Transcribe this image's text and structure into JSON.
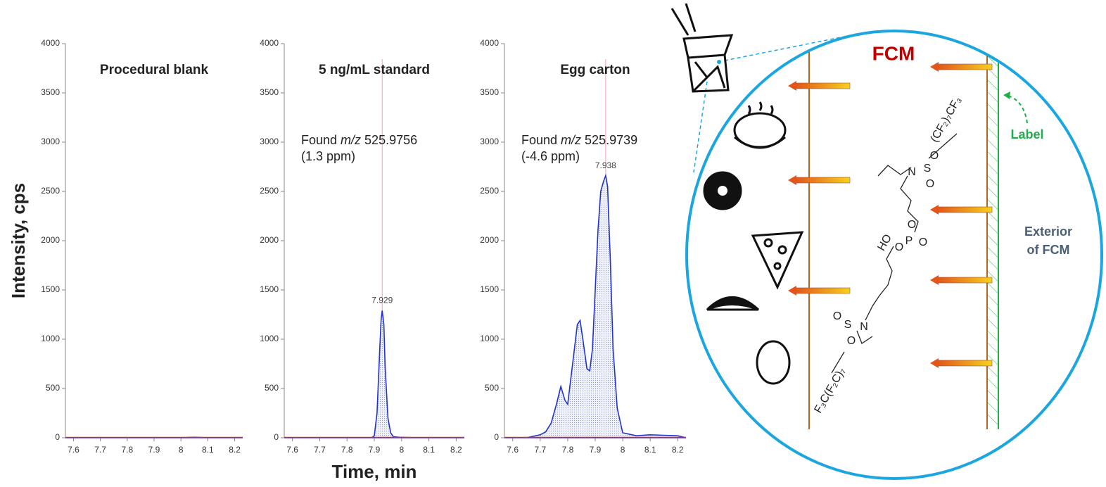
{
  "chart_data": [
    {
      "type": "line",
      "title": "Procedural blank",
      "x": [
        7.57,
        7.6,
        7.65,
        7.7,
        7.75,
        7.8,
        7.85,
        7.9,
        7.95,
        8.0,
        8.05,
        8.1,
        8.15,
        8.2,
        8.23
      ],
      "values": [
        0,
        0,
        0,
        0,
        0,
        0,
        0,
        0,
        0,
        0,
        5,
        0,
        0,
        0,
        0
      ],
      "color": "#2233cc",
      "xlim": [
        7.57,
        8.23
      ],
      "xticks": [
        7.6,
        7.7,
        7.8,
        7.9,
        8.0,
        8.1,
        8.2
      ],
      "ylim": [
        0,
        4000
      ],
      "yticks": [
        0,
        500,
        1000,
        1500,
        2000,
        2500,
        3000,
        3500,
        4000
      ]
    },
    {
      "type": "line",
      "title": "5 ng/mL standard",
      "annotation": {
        "prefix": "Found",
        "italic": "m/z",
        "value": 525.9756,
        "line2": "(1.3 ppm)"
      },
      "peak_label": 7.929,
      "x": [
        7.57,
        7.65,
        7.75,
        7.85,
        7.89,
        7.9,
        7.91,
        7.92,
        7.925,
        7.929,
        7.935,
        7.94,
        7.95,
        7.96,
        7.97,
        7.99,
        8.05,
        8.15,
        8.23
      ],
      "values": [
        0,
        0,
        0,
        0,
        0,
        20,
        250,
        900,
        1200,
        1290,
        1150,
        700,
        200,
        50,
        10,
        5,
        0,
        0,
        0
      ],
      "color": "#2233cc",
      "xlim": [
        7.57,
        8.23
      ],
      "xticks": [
        7.6,
        7.7,
        7.8,
        7.9,
        8.0,
        8.1,
        8.2
      ],
      "ylim": [
        0,
        4000
      ],
      "yticks": [
        0,
        500,
        1000,
        1500,
        2000,
        2500,
        3000,
        3500,
        4000
      ]
    },
    {
      "type": "line",
      "title": "Egg carton",
      "annotation": {
        "prefix": "Found",
        "italic": "m/z",
        "value": 525.9739,
        "line2": "(-4.6 ppm)"
      },
      "peak_label": 7.938,
      "x": [
        7.57,
        7.65,
        7.7,
        7.72,
        7.74,
        7.76,
        7.775,
        7.79,
        7.8,
        7.82,
        7.835,
        7.845,
        7.855,
        7.87,
        7.88,
        7.89,
        7.9,
        7.91,
        7.92,
        7.93,
        7.938,
        7.945,
        7.955,
        7.965,
        7.98,
        8.0,
        8.05,
        8.1,
        8.15,
        8.2,
        8.23
      ],
      "values": [
        0,
        0,
        30,
        60,
        150,
        350,
        520,
        380,
        340,
        800,
        1150,
        1190,
        1000,
        700,
        680,
        900,
        1500,
        2100,
        2500,
        2600,
        2660,
        2550,
        1800,
        900,
        300,
        50,
        20,
        30,
        25,
        20,
        0
      ],
      "color": "#2233cc",
      "xlim": [
        7.57,
        8.23
      ],
      "xticks": [
        7.6,
        7.7,
        7.8,
        7.9,
        8.0,
        8.1,
        8.2
      ],
      "ylim": [
        0,
        4000
      ],
      "yticks": [
        0,
        500,
        1000,
        1500,
        2000,
        2500,
        3000,
        3500,
        4000
      ]
    }
  ],
  "shared": {
    "ylabel": "Intensity, cps",
    "xlabel": "Time, min"
  },
  "diagram": {
    "title": "FCM",
    "label": "Label",
    "exterior": [
      "Exterior",
      "of FCM"
    ],
    "chem": {
      "top_chain": "(CF₂)₇CF₃",
      "bottom_chain": "F₃C(F₂C)₇",
      "n1": "N",
      "s1": "S",
      "o1": "O",
      "o2": "O",
      "o3": "O",
      "p": "P",
      "o4": "O",
      "ho": "HO",
      "o5": "O",
      "s2": "S",
      "o6": "O",
      "o7": "O",
      "n2": "N"
    }
  }
}
